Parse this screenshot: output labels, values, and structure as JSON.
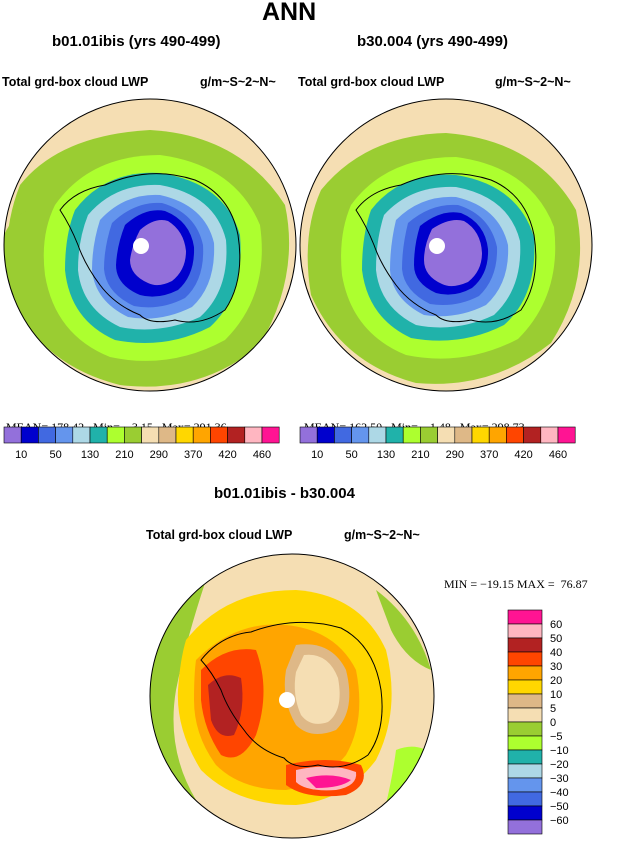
{
  "page": {
    "title": "ANN",
    "panels": [
      {
        "case": "b01.01ibis (yrs 490-499)",
        "variable": "Total grd-box cloud LWP",
        "units": "g/m~S~2~N~",
        "mean_label": "MEAN=",
        "mean": "178.42",
        "min_label": "Min=",
        "min": "3.15",
        "max_label": "Max=",
        "max": "291.36"
      },
      {
        "case": "b30.004 (yrs 490-499)",
        "variable": "Total grd-box cloud LWP",
        "units": "g/m~S~2~N~",
        "mean_label": "MEAN=",
        "mean": "162.50",
        "min_label": "Min=",
        "min": "1.48",
        "max_label": "Max=",
        "max": "298.73"
      }
    ],
    "colorbar": {
      "colors": [
        "#9370db",
        "#0000cd",
        "#4169e1",
        "#6495ed",
        "#add8e6",
        "#20b2aa",
        "#adff2f",
        "#9acd32",
        "#f5deb3",
        "#deb887",
        "#ffd700",
        "#ffa500",
        "#ff4500",
        "#b22222",
        "#ffb6c1",
        "#ff1493"
      ],
      "labels": [
        "10",
        "50",
        "130",
        "210",
        "290",
        "370",
        "420",
        "460"
      ]
    },
    "diff": {
      "title": "b01.01ibis - b30.004",
      "variable": "Total grd-box cloud LWP",
      "units": "g/m~S~2~N~",
      "minmax": "MIN = −19.15 MAX =  76.87",
      "colors": [
        "#ff1493",
        "#ffb6c1",
        "#b22222",
        "#ff4500",
        "#ffa500",
        "#ffd700",
        "#deb887",
        "#f5deb3",
        "#9acd32",
        "#adff2f",
        "#20b2aa",
        "#add8e6",
        "#6495ed",
        "#4169e1",
        "#0000cd",
        "#9370db"
      ],
      "labels": [
        "60",
        "50",
        "40",
        "30",
        "20",
        "10",
        "5",
        "0",
        "−5",
        "−10",
        "−20",
        "−30",
        "−40",
        "−50",
        "−60"
      ]
    }
  }
}
